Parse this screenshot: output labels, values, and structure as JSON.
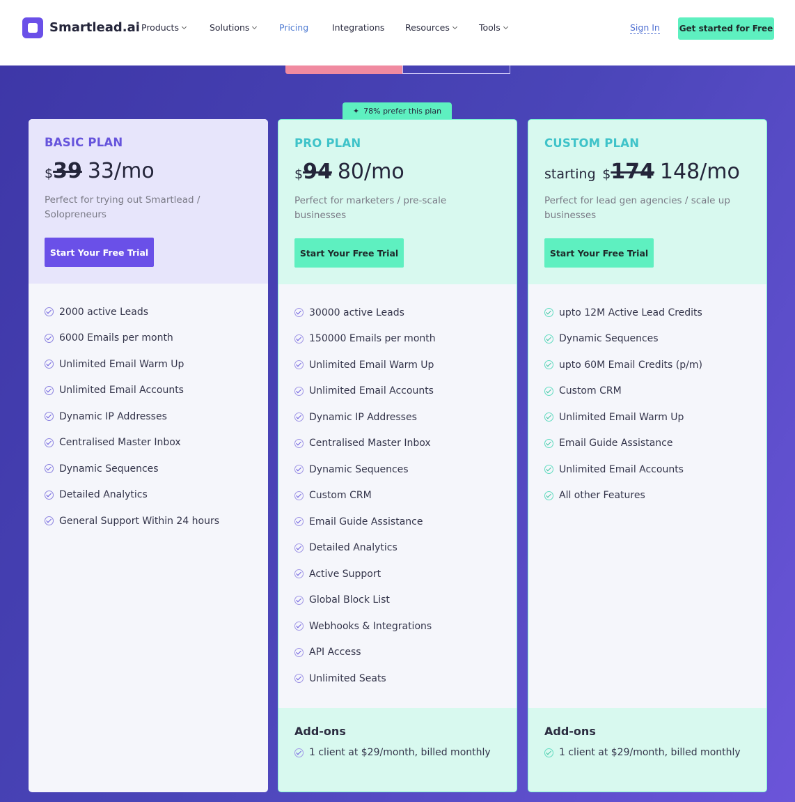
{
  "nav": {
    "brand": "Smartlead.ai",
    "links": [
      {
        "label": "Products",
        "dropdown": true
      },
      {
        "label": "Solutions",
        "dropdown": true
      },
      {
        "label": "Pricing",
        "dropdown": false,
        "active": true
      },
      {
        "label": "Integrations",
        "dropdown": false
      },
      {
        "label": "Resources",
        "dropdown": true
      },
      {
        "label": "Tools",
        "dropdown": true
      }
    ],
    "sign_in": "Sign In",
    "cta": "Get started for Free"
  },
  "badge": "78% prefer this plan",
  "plans": [
    {
      "name": "BASIC PLAN",
      "theme": "basic",
      "currency": "$",
      "old_price": "39",
      "price": "33/mo",
      "description": "Perfect for trying out Smartlead / Solopreneurs",
      "cta": "Start Your Free Trial",
      "features": [
        "2000 active Leads",
        "6000 Emails per month",
        "Unlimited Email Warm Up",
        "Unlimited Email Accounts",
        "Dynamic IP Addresses",
        "Centralised Master Inbox",
        "Dynamic Sequences",
        "Detailed Analytics",
        "General Support Within 24 hours"
      ]
    },
    {
      "name": "PRO PLAN",
      "theme": "pro",
      "currency": "$",
      "old_price": "94",
      "price": "80/mo",
      "description": "Perfect for marketers / pre-scale businesses",
      "cta": "Start Your Free Trial",
      "features": [
        "30000 active Leads",
        "150000 Emails per month",
        "Unlimited Email Warm Up",
        "Unlimited Email Accounts",
        "Dynamic IP Addresses",
        "Centralised Master Inbox",
        "Dynamic Sequences",
        "Custom CRM",
        "Email Guide Assistance",
        "Detailed Analytics",
        "Active Support",
        "Global Block List",
        "Webhooks & Integrations",
        "API Access",
        "Unlimited Seats"
      ],
      "addons": {
        "title": "Add-ons",
        "items": [
          "1 client at $29/month, billed monthly"
        ]
      }
    },
    {
      "name": "CUSTOM PLAN",
      "theme": "custom",
      "prefix": "starting",
      "currency": "$",
      "old_price": "174",
      "price": "148/mo",
      "description": "Perfect for lead gen agencies / scale up businesses",
      "cta": "Start Your Free Trial",
      "features": [
        "upto 12M Active Lead Credits",
        "Dynamic Sequences",
        "upto 60M Email Credits (p/m)",
        "Custom CRM",
        "Unlimited Email Warm Up",
        "Email Guide Assistance",
        "Unlimited Email Accounts",
        "All other Features"
      ],
      "addons": {
        "title": "Add-ons",
        "items": [
          "1 client at $29/month, billed monthly"
        ]
      }
    }
  ]
}
